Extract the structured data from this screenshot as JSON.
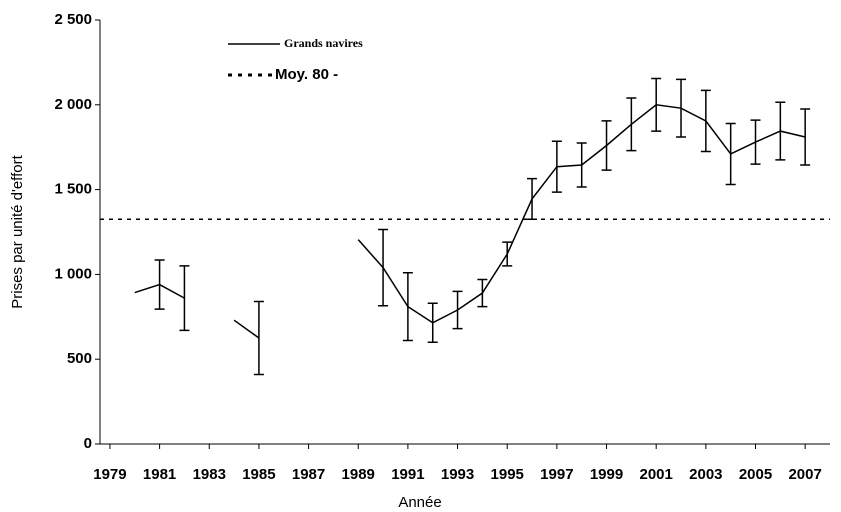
{
  "chart_data": {
    "type": "line",
    "x_label": "Année",
    "y_label": "Prises par unité d'effort",
    "x": [
      1979,
      1980,
      1981,
      1982,
      1983,
      1984,
      1985,
      1986,
      1987,
      1988,
      1989,
      1990,
      1991,
      1992,
      1993,
      1994,
      1995,
      1996,
      1997,
      1998,
      1999,
      2000,
      2001,
      2002,
      2003,
      2004,
      2005,
      2006,
      2007
    ],
    "series": [
      {
        "name": "Grands navires",
        "color": "#000000",
        "values": [
          null,
          893,
          940,
          860,
          null,
          730,
          625,
          null,
          null,
          null,
          1205,
          1040,
          810,
          715,
          790,
          890,
          1120,
          1445,
          1635,
          1645,
          1760,
          1885,
          2000,
          1980,
          1905,
          1710,
          1780,
          1845,
          1810
        ],
        "errors": [
          null,
          null,
          145,
          190,
          null,
          null,
          215,
          null,
          null,
          null,
          null,
          225,
          200,
          115,
          110,
          80,
          70,
          120,
          150,
          130,
          145,
          155,
          155,
          170,
          180,
          180,
          130,
          170,
          165
        ]
      }
    ],
    "reference_line": {
      "name": "Moy. 80 -",
      "value": 1325,
      "color": "#000000"
    },
    "xlim": [
      1978.6,
      2008
    ],
    "xticks": [
      1979,
      1981,
      1983,
      1985,
      1987,
      1989,
      1991,
      1993,
      1995,
      1997,
      1999,
      2001,
      2003,
      2005,
      2007
    ],
    "ylim": [
      0,
      2500
    ],
    "yticks": [
      0,
      500,
      {
        "value": 1000,
        "label": "1 000"
      },
      {
        "value": 1500,
        "label": "1 500"
      },
      {
        "value": 2000,
        "label": "2 000"
      },
      {
        "value": 2500,
        "label": "2 500"
      }
    ]
  }
}
